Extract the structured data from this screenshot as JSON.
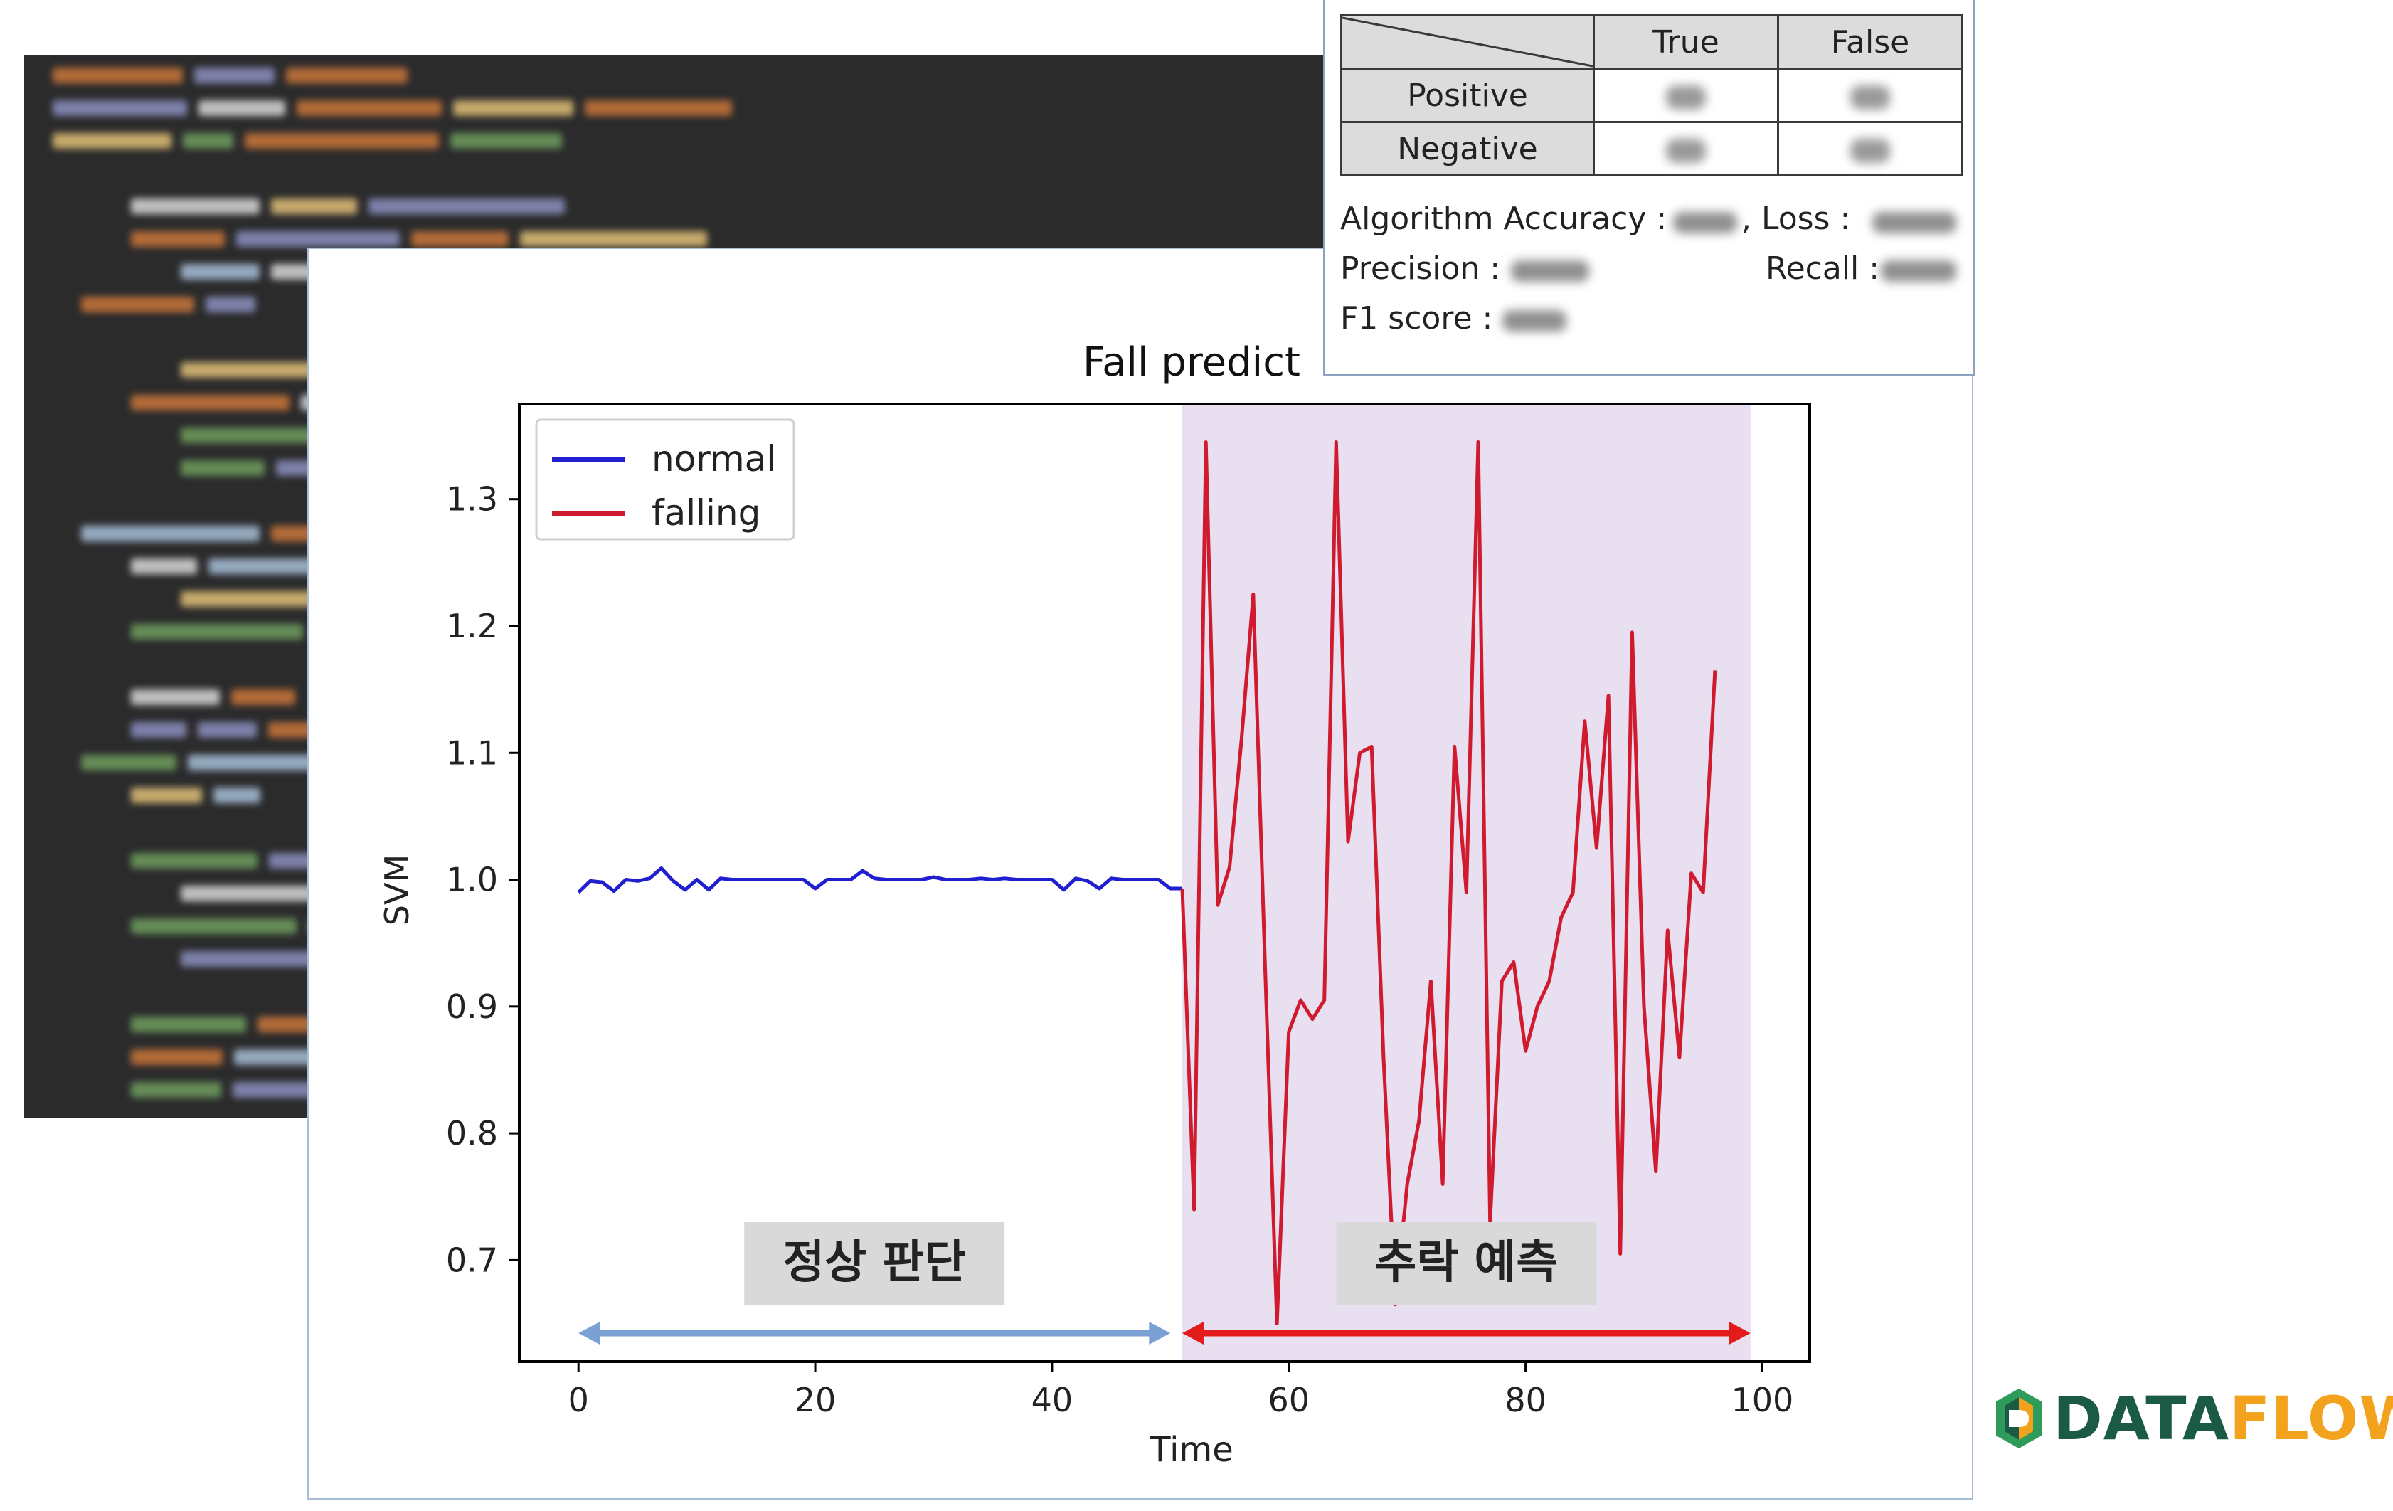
{
  "metrics": {
    "headers": [
      "True",
      "False"
    ],
    "rows": [
      "Positive",
      "Negative"
    ],
    "accuracy_label": "Algorithm Accuracy :",
    "loss_label": ", Loss :",
    "precision_label": "Precision :",
    "recall_label": "Recall :",
    "f1_label": "F1 score :"
  },
  "chart_data": {
    "type": "line",
    "title": "Fall predict",
    "xlabel": "Time",
    "ylabel": "SVM",
    "xlim": [
      -5,
      104
    ],
    "ylim": [
      0.62,
      1.375
    ],
    "xticks": [
      0,
      20,
      40,
      60,
      80,
      100
    ],
    "yticks": [
      0.7,
      0.8,
      0.9,
      1.0,
      1.1,
      1.2,
      1.3
    ],
    "legend_position": "top-left",
    "shaded_region": {
      "x": [
        51,
        99
      ],
      "color": "#e8dff0"
    },
    "annotations": [
      {
        "text": "정상 판단",
        "x_range": [
          0,
          50
        ],
        "arrow_color": "#7aa0d4"
      },
      {
        "text": "추락 예측",
        "x_range": [
          51,
          99
        ],
        "arrow_color": "#e31b1b"
      }
    ],
    "series": [
      {
        "name": "normal",
        "color": "#1f1fcf",
        "x": [
          0,
          1,
          2,
          3,
          4,
          5,
          6,
          7,
          8,
          9,
          10,
          11,
          12,
          13,
          14,
          15,
          16,
          17,
          18,
          19,
          20,
          21,
          22,
          23,
          24,
          25,
          26,
          27,
          28,
          29,
          30,
          31,
          32,
          33,
          34,
          35,
          36,
          37,
          38,
          39,
          40,
          41,
          42,
          43,
          44,
          45,
          46,
          47,
          48,
          49,
          50,
          51
        ],
        "y": [
          0.99,
          0.999,
          0.998,
          0.991,
          1.0,
          0.999,
          1.001,
          1.009,
          0.999,
          0.992,
          1.0,
          0.992,
          1.001,
          1.0,
          1.0,
          1.0,
          1.0,
          1.0,
          1.0,
          1.0,
          0.993,
          1.0,
          1.0,
          1.0,
          1.007,
          1.001,
          1.0,
          1.0,
          1.0,
          1.0,
          1.002,
          1.0,
          1.0,
          1.0,
          1.001,
          1.0,
          1.001,
          1.0,
          1.0,
          1.0,
          1.0,
          0.992,
          1.001,
          0.999,
          0.993,
          1.001,
          1.0,
          1.0,
          1.0,
          1.0,
          0.993,
          0.993
        ]
      },
      {
        "name": "falling",
        "color": "#d01a2e",
        "x": [
          51,
          52,
          53,
          54,
          55,
          56,
          57,
          58,
          59,
          60,
          61,
          62,
          63,
          64,
          65,
          66,
          67,
          68,
          69,
          70,
          71,
          72,
          73,
          74,
          75,
          76,
          77,
          78,
          79,
          80,
          81,
          82,
          83,
          84,
          85,
          86,
          87,
          88,
          89,
          90,
          91,
          92,
          93,
          94,
          95,
          96,
          97,
          98,
          99
        ],
        "y": [
          0.993,
          0.74,
          1.345,
          0.98,
          1.01,
          1.11,
          1.225,
          0.93,
          0.65,
          0.88,
          0.905,
          0.89,
          0.905,
          1.345,
          1.03,
          1.1,
          1.105,
          0.86,
          0.665,
          0.76,
          0.81,
          0.92,
          0.76,
          1.105,
          0.99,
          1.345,
          0.73,
          0.92,
          0.935,
          0.865,
          0.9,
          0.92,
          0.97,
          0.99,
          1.125,
          1.025,
          1.145,
          0.705,
          1.195,
          0.9,
          0.77,
          0.96,
          0.86,
          1.005,
          0.99,
          1.165,
          null,
          null,
          null
        ]
      }
    ]
  }
}
